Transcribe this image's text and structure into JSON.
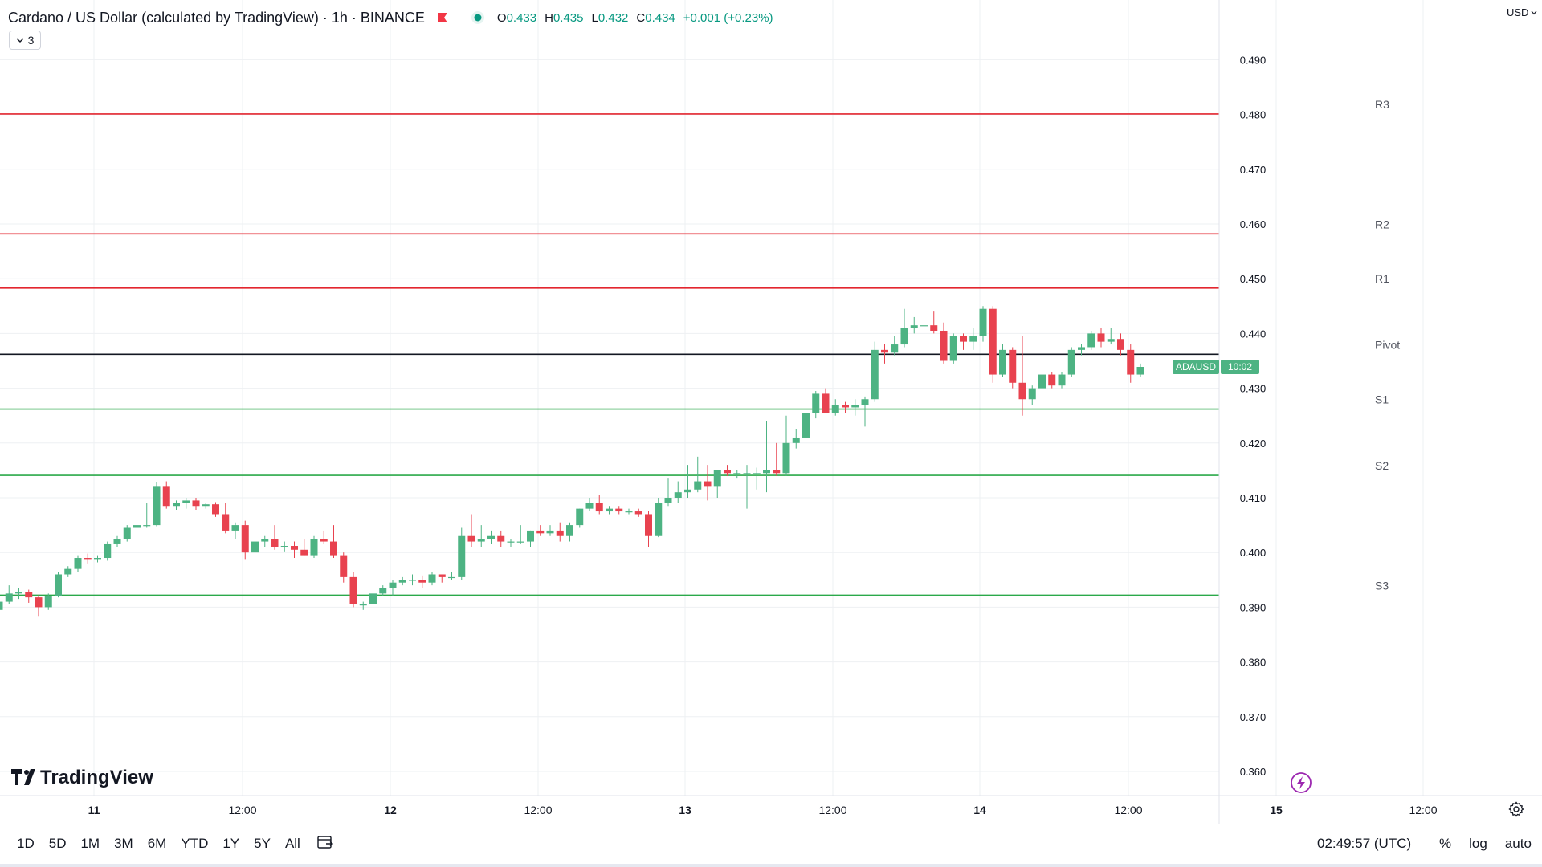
{
  "legend": {
    "title": "Cardano / US Dollar (calculated by TradingView) · 1h · BINANCE",
    "open_label": "O",
    "open": "0.433",
    "high_label": "H",
    "high": "0.435",
    "low_label": "L",
    "low": "0.432",
    "close_label": "C",
    "close": "0.434",
    "change": "+0.001 (+0.23%)",
    "indicator_count": "3"
  },
  "currency": "USD",
  "logo_text": "TradingView",
  "price_tag": {
    "symbol": "ADAUSD",
    "countdown": "10:02",
    "value": 0.4339
  },
  "toolbar": {
    "ranges": [
      "1D",
      "5D",
      "1M",
      "3M",
      "6M",
      "YTD",
      "1Y",
      "5Y",
      "All"
    ],
    "clock": "02:49:57 (UTC)",
    "percent": "%",
    "log": "log",
    "auto": "auto"
  },
  "colors": {
    "up": "#4db383",
    "down": "#e8424f",
    "resistance": "#e3262f",
    "support": "#2ba94a",
    "pivot": "#131722",
    "grid": "#eef0f3"
  },
  "chart_data": {
    "type": "candlestick",
    "symbol": "ADAUSD",
    "interval": "1h",
    "ylim": [
      0.356,
      0.5
    ],
    "y_ticks": [
      "0.490",
      "0.480",
      "0.470",
      "0.460",
      "0.450",
      "0.440",
      "0.430",
      "0.420",
      "0.410",
      "0.400",
      "0.390",
      "0.380",
      "0.370",
      "0.360"
    ],
    "x_ticks": [
      "11",
      "12:00",
      "12",
      "12:00",
      "13",
      "12:00",
      "14",
      "12:00",
      "15",
      "12:00"
    ],
    "levels": [
      {
        "name": "R3",
        "value": 0.4801,
        "kind": "resistance"
      },
      {
        "name": "R2",
        "value": 0.4582,
        "kind": "resistance"
      },
      {
        "name": "R1",
        "value": 0.4483,
        "kind": "resistance"
      },
      {
        "name": "Pivot",
        "value": 0.4362,
        "kind": "pivot"
      },
      {
        "name": "S1",
        "value": 0.4262,
        "kind": "support"
      },
      {
        "name": "S2",
        "value": 0.4141,
        "kind": "support"
      },
      {
        "name": "S3",
        "value": 0.3922,
        "kind": "support"
      }
    ],
    "candles": [
      [
        0.3895,
        0.3912,
        0.389,
        0.391
      ],
      [
        0.391,
        0.394,
        0.3905,
        0.3925
      ],
      [
        0.3925,
        0.3935,
        0.3915,
        0.3928
      ],
      [
        0.3928,
        0.3932,
        0.3908,
        0.3918
      ],
      [
        0.3918,
        0.3922,
        0.3884,
        0.39
      ],
      [
        0.39,
        0.3925,
        0.3895,
        0.392
      ],
      [
        0.392,
        0.3965,
        0.3918,
        0.396
      ],
      [
        0.396,
        0.3975,
        0.3955,
        0.397
      ],
      [
        0.397,
        0.3995,
        0.3965,
        0.399
      ],
      [
        0.399,
        0.3998,
        0.398,
        0.3988
      ],
      [
        0.3988,
        0.3995,
        0.3982,
        0.399
      ],
      [
        0.399,
        0.402,
        0.3985,
        0.4015
      ],
      [
        0.4015,
        0.403,
        0.401,
        0.4025
      ],
      [
        0.4025,
        0.405,
        0.402,
        0.4045
      ],
      [
        0.4045,
        0.408,
        0.404,
        0.405
      ],
      [
        0.405,
        0.409,
        0.4045,
        0.405
      ],
      [
        0.405,
        0.4128,
        0.4048,
        0.412
      ],
      [
        0.412,
        0.413,
        0.408,
        0.4085
      ],
      [
        0.4085,
        0.4095,
        0.4078,
        0.409
      ],
      [
        0.409,
        0.41,
        0.408,
        0.4095
      ],
      [
        0.4095,
        0.41,
        0.4078,
        0.4085
      ],
      [
        0.4085,
        0.409,
        0.408,
        0.4088
      ],
      [
        0.4088,
        0.4092,
        0.4065,
        0.407
      ],
      [
        0.407,
        0.409,
        0.4035,
        0.404
      ],
      [
        0.404,
        0.4055,
        0.4025,
        0.405
      ],
      [
        0.405,
        0.4058,
        0.3988,
        0.4
      ],
      [
        0.4,
        0.403,
        0.397,
        0.402
      ],
      [
        0.402,
        0.403,
        0.401,
        0.4025
      ],
      [
        0.4025,
        0.405,
        0.4005,
        0.401
      ],
      [
        0.401,
        0.402,
        0.4002,
        0.4012
      ],
      [
        0.4012,
        0.402,
        0.399,
        0.4005
      ],
      [
        0.4005,
        0.4025,
        0.3995,
        0.3995
      ],
      [
        0.3995,
        0.403,
        0.399,
        0.4025
      ],
      [
        0.4025,
        0.404,
        0.4015,
        0.402
      ],
      [
        0.402,
        0.405,
        0.399,
        0.3995
      ],
      [
        0.3995,
        0.4,
        0.3945,
        0.3955
      ],
      [
        0.3955,
        0.3965,
        0.39,
        0.3905
      ],
      [
        0.3905,
        0.391,
        0.3895,
        0.3905
      ],
      [
        0.3905,
        0.3935,
        0.3895,
        0.3925
      ],
      [
        0.3925,
        0.394,
        0.392,
        0.3935
      ],
      [
        0.3935,
        0.395,
        0.392,
        0.3945
      ],
      [
        0.3945,
        0.3955,
        0.394,
        0.395
      ],
      [
        0.395,
        0.396,
        0.394,
        0.395
      ],
      [
        0.395,
        0.3958,
        0.3935,
        0.3945
      ],
      [
        0.3945,
        0.3965,
        0.394,
        0.396
      ],
      [
        0.396,
        0.396,
        0.3945,
        0.3955
      ],
      [
        0.3955,
        0.3965,
        0.395,
        0.3955
      ],
      [
        0.3955,
        0.4045,
        0.395,
        0.403
      ],
      [
        0.403,
        0.407,
        0.401,
        0.402
      ],
      [
        0.402,
        0.405,
        0.401,
        0.4025
      ],
      [
        0.4025,
        0.404,
        0.4015,
        0.403
      ],
      [
        0.403,
        0.404,
        0.401,
        0.402
      ],
      [
        0.402,
        0.4025,
        0.401,
        0.402
      ],
      [
        0.402,
        0.405,
        0.4015,
        0.402
      ],
      [
        0.402,
        0.404,
        0.401,
        0.404
      ],
      [
        0.404,
        0.405,
        0.403,
        0.4035
      ],
      [
        0.4035,
        0.405,
        0.403,
        0.404
      ],
      [
        0.404,
        0.4055,
        0.402,
        0.403
      ],
      [
        0.403,
        0.4055,
        0.402,
        0.405
      ],
      [
        0.405,
        0.408,
        0.4045,
        0.408
      ],
      [
        0.408,
        0.41,
        0.4075,
        0.409
      ],
      [
        0.409,
        0.4105,
        0.407,
        0.4075
      ],
      [
        0.4075,
        0.4085,
        0.407,
        0.408
      ],
      [
        0.408,
        0.4085,
        0.407,
        0.4075
      ],
      [
        0.4075,
        0.408,
        0.407,
        0.4075
      ],
      [
        0.4075,
        0.408,
        0.4065,
        0.407
      ],
      [
        0.407,
        0.4075,
        0.401,
        0.403
      ],
      [
        0.403,
        0.41,
        0.4028,
        0.409
      ],
      [
        0.409,
        0.4135,
        0.4085,
        0.41
      ],
      [
        0.41,
        0.413,
        0.409,
        0.411
      ],
      [
        0.411,
        0.416,
        0.41,
        0.4115
      ],
      [
        0.4115,
        0.4175,
        0.411,
        0.413
      ],
      [
        0.413,
        0.416,
        0.4095,
        0.412
      ],
      [
        0.412,
        0.415,
        0.41,
        0.415
      ],
      [
        0.415,
        0.416,
        0.414,
        0.4145
      ],
      [
        0.4145,
        0.415,
        0.4135,
        0.4145
      ],
      [
        0.4145,
        0.416,
        0.408,
        0.4145
      ],
      [
        0.4145,
        0.4155,
        0.4115,
        0.4145
      ],
      [
        0.4145,
        0.424,
        0.411,
        0.415
      ],
      [
        0.415,
        0.42,
        0.414,
        0.4145
      ],
      [
        0.4145,
        0.425,
        0.414,
        0.42
      ],
      [
        0.42,
        0.4225,
        0.419,
        0.421
      ],
      [
        0.421,
        0.4295,
        0.4205,
        0.4255
      ],
      [
        0.4255,
        0.4295,
        0.4245,
        0.429
      ],
      [
        0.429,
        0.43,
        0.4255,
        0.4255
      ],
      [
        0.4255,
        0.428,
        0.425,
        0.427
      ],
      [
        0.427,
        0.4275,
        0.4255,
        0.4265
      ],
      [
        0.4265,
        0.428,
        0.425,
        0.427
      ],
      [
        0.427,
        0.4285,
        0.423,
        0.428
      ],
      [
        0.428,
        0.4385,
        0.4275,
        0.437
      ],
      [
        0.437,
        0.438,
        0.4345,
        0.4365
      ],
      [
        0.4365,
        0.4395,
        0.436,
        0.438
      ],
      [
        0.438,
        0.4445,
        0.4375,
        0.441
      ],
      [
        0.441,
        0.443,
        0.44,
        0.4415
      ],
      [
        0.4415,
        0.4425,
        0.441,
        0.4415
      ],
      [
        0.4415,
        0.444,
        0.44,
        0.4405
      ],
      [
        0.4405,
        0.442,
        0.4345,
        0.435
      ],
      [
        0.435,
        0.44,
        0.4345,
        0.4395
      ],
      [
        0.4395,
        0.44,
        0.437,
        0.4385
      ],
      [
        0.4385,
        0.441,
        0.437,
        0.4395
      ],
      [
        0.4395,
        0.445,
        0.4385,
        0.4445
      ],
      [
        0.4445,
        0.445,
        0.431,
        0.4325
      ],
      [
        0.4325,
        0.438,
        0.432,
        0.437
      ],
      [
        0.437,
        0.4375,
        0.43,
        0.431
      ],
      [
        0.431,
        0.4395,
        0.425,
        0.428
      ],
      [
        0.428,
        0.4305,
        0.427,
        0.43
      ],
      [
        0.43,
        0.433,
        0.429,
        0.4325
      ],
      [
        0.4325,
        0.433,
        0.43,
        0.4305
      ],
      [
        0.4305,
        0.433,
        0.43,
        0.4325
      ],
      [
        0.4325,
        0.4375,
        0.432,
        0.437
      ],
      [
        0.437,
        0.438,
        0.436,
        0.4375
      ],
      [
        0.4375,
        0.4405,
        0.437,
        0.44
      ],
      [
        0.44,
        0.441,
        0.4375,
        0.4385
      ],
      [
        0.4385,
        0.441,
        0.438,
        0.439
      ],
      [
        0.439,
        0.44,
        0.436,
        0.437
      ],
      [
        0.437,
        0.438,
        0.431,
        0.4325
      ],
      [
        0.4325,
        0.4345,
        0.432,
        0.4339
      ]
    ]
  }
}
